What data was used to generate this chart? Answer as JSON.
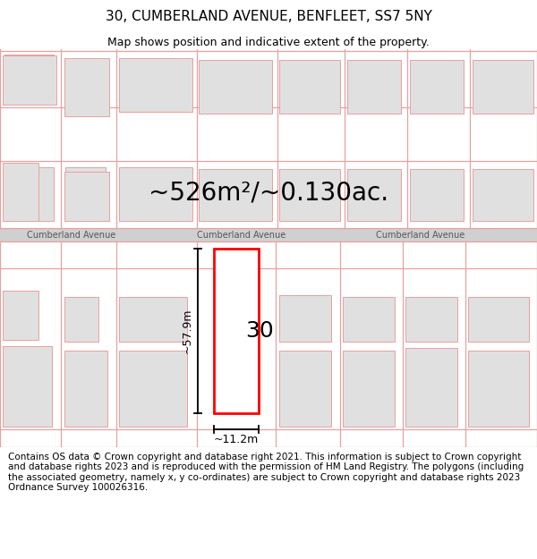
{
  "title": "30, CUMBERLAND AVENUE, BENFLEET, SS7 5NY",
  "subtitle": "Map shows position and indicative extent of the property.",
  "area_text": "~526m²/~0.130ac.",
  "label_30": "30",
  "dim_height": "~57.9m",
  "dim_width": "~11.2m",
  "road_name": "Cumberland Avenue",
  "footer_text": "Contains OS data © Crown copyright and database right 2021. This information is subject to Crown copyright and database rights 2023 and is reproduced with the permission of HM Land Registry. The polygons (including the associated geometry, namely x, y co-ordinates) are subject to Crown copyright and database rights 2023 Ordnance Survey 100026316.",
  "bg_color": "#ffffff",
  "road_color": "#d0d0d0",
  "parcel_color": "#e8a0a0",
  "building_fill": "#e0e0e0",
  "building_edge": "#e8a0a0",
  "highlight_fill": "#ffffff",
  "highlight_edge": "#ff0000",
  "dim_line_color": "#000000",
  "title_fontsize": 11,
  "subtitle_fontsize": 9,
  "area_fontsize": 20,
  "road_fontsize": 7,
  "label_fontsize": 18,
  "dim_fontsize": 9,
  "footer_fontsize": 7.5
}
